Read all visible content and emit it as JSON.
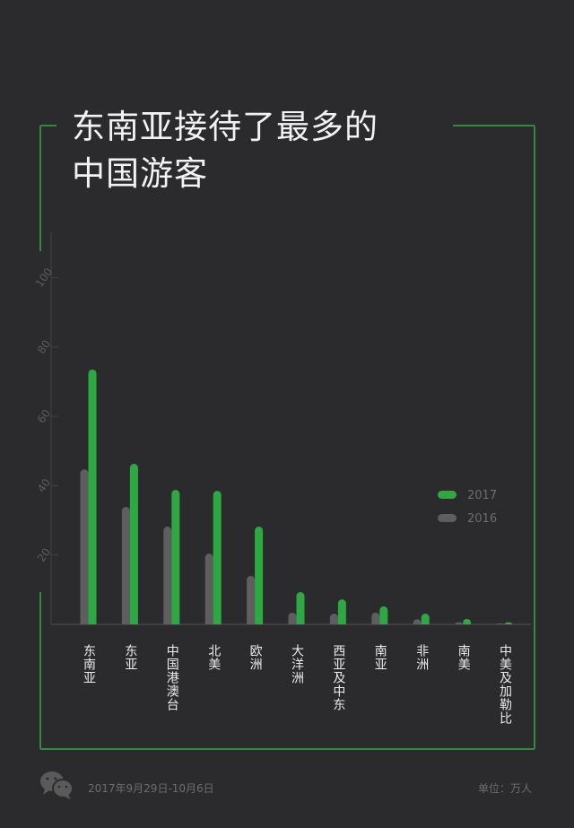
{
  "title": "东南亚接待了最多的\n中国游客",
  "colors": {
    "background": "#2b2a2c",
    "frame": "#2f8a3c",
    "series_2017": "#2ea843",
    "series_2016": "#5e5d5f",
    "axis": "#444444"
  },
  "chart_data": {
    "type": "bar",
    "title": "东南亚接待了最多的中国游客",
    "categories": [
      "东南亚",
      "东亚",
      "中国港澳台",
      "北美",
      "欧洲",
      "大洋洲",
      "西亚及中东",
      "南亚",
      "非洲",
      "南美",
      "中美及加勒比"
    ],
    "series": [
      {
        "name": "2016",
        "values": [
          44.7,
          33.9,
          28.2,
          20.4,
          14.0,
          3.4,
          3.1,
          3.4,
          1.5,
          0.6,
          0.3
        ]
      },
      {
        "name": "2017",
        "values": [
          73.5,
          46.3,
          38.8,
          38.5,
          28.2,
          9.3,
          7.2,
          5.2,
          3.1,
          1.6,
          0.6
        ]
      }
    ],
    "yticks": [
      "20",
      "40",
      "60",
      "80",
      "100"
    ],
    "ylim": [
      0,
      100
    ],
    "grid": false,
    "legend": "right",
    "unit": "单位：万人"
  },
  "footer": {
    "date": "2017年9月29日-10月6日",
    "unit": "单位：万人",
    "logo_icon": "wechat-icon"
  }
}
